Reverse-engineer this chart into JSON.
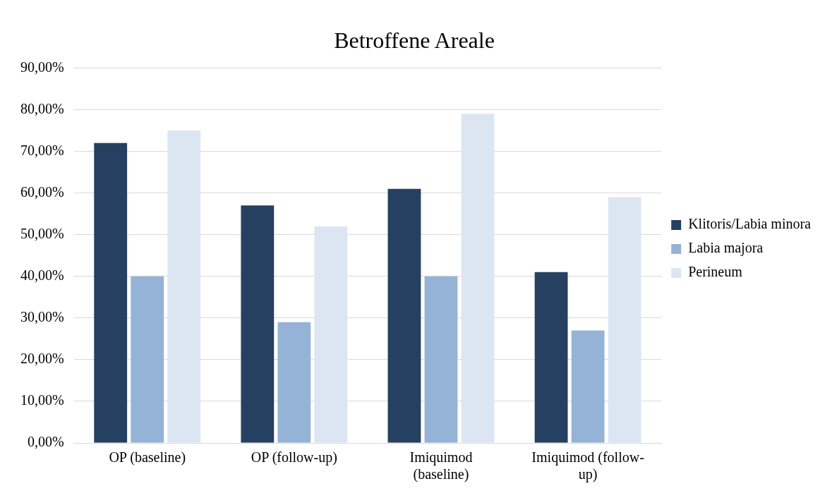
{
  "chart_data": {
    "type": "bar",
    "title": "Betroffene Areale",
    "categories": [
      "OP (baseline)",
      "OP (follow-up)",
      "Imiquimod (baseline)",
      "Imiquimod (follow-up)"
    ],
    "series": [
      {
        "name": "Klitoris/Labia minora",
        "color": "#264061",
        "values": [
          72,
          57,
          61,
          41
        ]
      },
      {
        "name": "Labia majora",
        "color": "#95b3d7",
        "values": [
          40,
          29,
          40,
          27
        ]
      },
      {
        "name": "Perineum",
        "color": "#dce6f2",
        "values": [
          75,
          52,
          79,
          59
        ]
      }
    ],
    "ylim": [
      0,
      90
    ],
    "yticks": [
      {
        "value": 0,
        "label": "0,00%"
      },
      {
        "value": 10,
        "label": "10,00%"
      },
      {
        "value": 20,
        "label": "20,00%"
      },
      {
        "value": 30,
        "label": "30,00%"
      },
      {
        "value": 40,
        "label": "40,00%"
      },
      {
        "value": 50,
        "label": "50,00%"
      },
      {
        "value": 60,
        "label": "60,00%"
      },
      {
        "value": 70,
        "label": "70,00%"
      },
      {
        "value": 80,
        "label": "80,00%"
      },
      {
        "value": 90,
        "label": "90,00%"
      }
    ],
    "grid": "y",
    "legend": "right"
  }
}
